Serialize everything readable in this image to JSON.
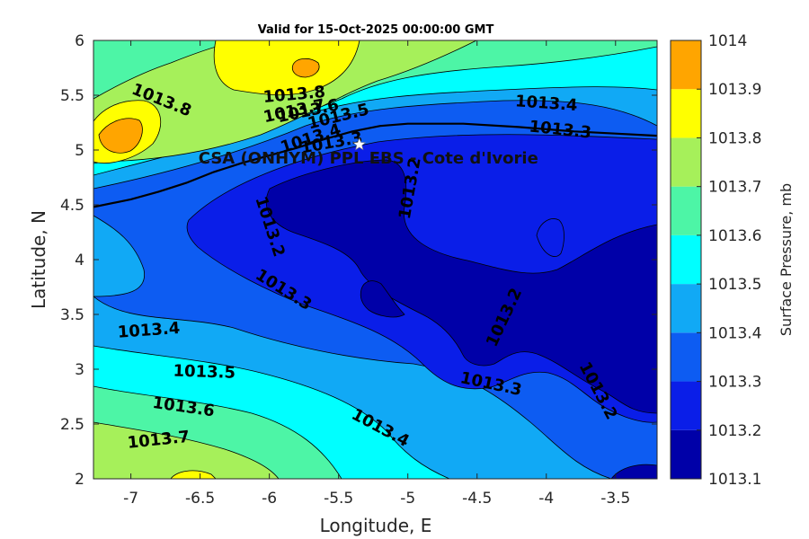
{
  "title": "Valid for 15-Oct-2025 00:00:00 GMT",
  "xlabel": "Longitude, E",
  "ylabel": "Latitude, N",
  "station": {
    "label": "CSA (ONHYM) PPL EBS - Cote d'Ivorie",
    "lon": -5.35,
    "lat": 5.05,
    "marker": "white-star"
  },
  "map_extent": {
    "lon_min": -7.27,
    "lon_max": -3.2,
    "lat_min": 2.0,
    "lat_max": 6.0
  },
  "x_ticks": [
    {
      "value": -7,
      "label": "-7"
    },
    {
      "value": -6.5,
      "label": "-6.5"
    },
    {
      "value": -6,
      "label": "-6"
    },
    {
      "value": -5.5,
      "label": "-5.5"
    },
    {
      "value": -5,
      "label": "-5"
    },
    {
      "value": -4.5,
      "label": "-4.5"
    },
    {
      "value": -4,
      "label": "-4"
    },
    {
      "value": -3.5,
      "label": "-3.5"
    }
  ],
  "y_ticks": [
    {
      "value": 2,
      "label": "2"
    },
    {
      "value": 2.5,
      "label": "2.5"
    },
    {
      "value": 3,
      "label": "3"
    },
    {
      "value": 3.5,
      "label": "3.5"
    },
    {
      "value": 4,
      "label": "4"
    },
    {
      "value": 4.5,
      "label": "4.5"
    },
    {
      "value": 5,
      "label": "5"
    },
    {
      "value": 5.5,
      "label": "5.5"
    },
    {
      "value": 6,
      "label": "6"
    }
  ],
  "colorbar": {
    "label": "Surface Pressure, mb",
    "levels": [
      {
        "value": 1013.1,
        "label": "1013.1",
        "color": "#0000A8"
      },
      {
        "value": 1013.2,
        "label": "1013.2",
        "color": "#0A1EE8"
      },
      {
        "value": 1013.3,
        "label": "1013.3",
        "color": "#0D5CF2"
      },
      {
        "value": 1013.4,
        "label": "1013.4",
        "color": "#11A9F5"
      },
      {
        "value": 1013.5,
        "label": "1013.5",
        "color": "#00FFFF"
      },
      {
        "value": 1013.6,
        "label": "1013.6",
        "color": "#4DF5A6"
      },
      {
        "value": 1013.7,
        "label": "1013.7",
        "color": "#A6F05A"
      },
      {
        "value": 1013.8,
        "label": "1013.8",
        "color": "#FFFF00"
      },
      {
        "value": 1013.9,
        "label": "1013.9",
        "color": "#FFA500"
      },
      {
        "value": 1014,
        "label": "1014",
        "color": "#FF5500"
      }
    ]
  },
  "contour_labels": [
    {
      "text": "1013.8",
      "lon": -6.78,
      "lat": 5.45,
      "angle": 22
    },
    {
      "text": "1013.8",
      "lon": -5.82,
      "lat": 5.5,
      "angle": -5
    },
    {
      "text": "1013.7",
      "lon": -5.82,
      "lat": 5.35,
      "angle": -12
    },
    {
      "text": "1013.6",
      "lon": -5.72,
      "lat": 5.35,
      "angle": -12
    },
    {
      "text": "1013.5",
      "lon": -5.5,
      "lat": 5.3,
      "angle": -14
    },
    {
      "text": "1013.4",
      "lon": -5.7,
      "lat": 5.1,
      "angle": -18
    },
    {
      "text": "1013.3",
      "lon": -5.55,
      "lat": 5.06,
      "angle": -10
    },
    {
      "text": "1013.2",
      "lon": -4.98,
      "lat": 4.65,
      "angle": -80
    },
    {
      "text": "1013.4",
      "lon": -4.0,
      "lat": 5.42,
      "angle": 4
    },
    {
      "text": "1013.3",
      "lon": -3.9,
      "lat": 5.18,
      "angle": 6
    },
    {
      "text": "1013.2",
      "lon": -6.0,
      "lat": 4.3,
      "angle": 72
    },
    {
      "text": "1013.3",
      "lon": -5.9,
      "lat": 3.72,
      "angle": 32
    },
    {
      "text": "1013.4",
      "lon": -6.87,
      "lat": 3.35,
      "angle": -4
    },
    {
      "text": "1013.2",
      "lon": -4.3,
      "lat": 3.47,
      "angle": -65
    },
    {
      "text": "1013.5",
      "lon": -6.47,
      "lat": 2.97,
      "angle": 2
    },
    {
      "text": "1013.3",
      "lon": -4.4,
      "lat": 2.86,
      "angle": 12
    },
    {
      "text": "1013.2",
      "lon": -3.63,
      "lat": 2.8,
      "angle": 62
    },
    {
      "text": "1013.6",
      "lon": -6.62,
      "lat": 2.65,
      "angle": 8
    },
    {
      "text": "1013.4",
      "lon": -5.2,
      "lat": 2.46,
      "angle": 28
    },
    {
      "text": "1013.7",
      "lon": -6.8,
      "lat": 2.35,
      "angle": -6
    }
  ],
  "coastline": [
    [
      -7.27,
      4.48
    ],
    [
      -7.0,
      4.55
    ],
    [
      -6.8,
      4.62
    ],
    [
      -6.6,
      4.7
    ],
    [
      -6.4,
      4.8
    ],
    [
      -6.2,
      4.88
    ],
    [
      -6.0,
      4.95
    ],
    [
      -5.8,
      5.02
    ],
    [
      -5.6,
      5.1
    ],
    [
      -5.4,
      5.17
    ],
    [
      -5.2,
      5.22
    ],
    [
      -5.0,
      5.24
    ],
    [
      -4.6,
      5.24
    ],
    [
      -4.2,
      5.21
    ],
    [
      -3.8,
      5.17
    ],
    [
      -3.5,
      5.15
    ],
    [
      -3.2,
      5.13
    ]
  ]
}
